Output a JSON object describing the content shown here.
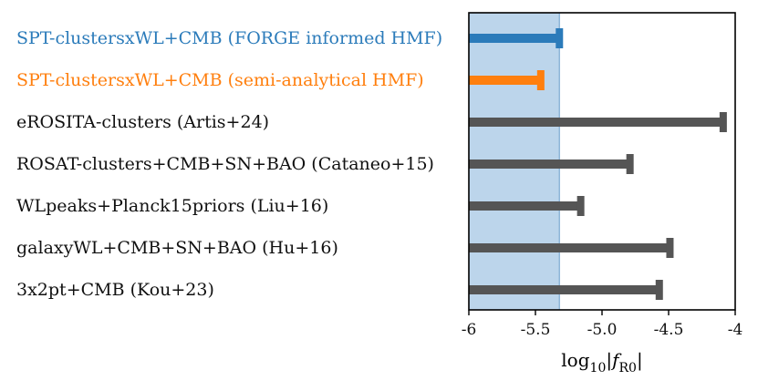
{
  "chart_data": {
    "type": "bar",
    "subtype": "horizontal upper-limit bars",
    "xlabel_parts": {
      "prefix": "log",
      "subscript": "10",
      "open": "|",
      "var": "f",
      "var_sub": "R0",
      "close": "|"
    },
    "xlim": [
      -6,
      -4
    ],
    "xticks": [
      -6,
      -5.5,
      -5.0,
      -4.5,
      -4
    ],
    "xtick_labels": [
      "-6",
      "-5.5",
      "-5.0",
      "-4.5",
      "-4"
    ],
    "shaded_region": {
      "from": -6,
      "to": -5.32,
      "color": "#bcd5eb",
      "edge_color": "#8fb6d9"
    },
    "grid": false,
    "series": [
      {
        "label": "SPT-clustersxWL+CMB (FORGE informed HMF)",
        "upper_limit": -5.32,
        "color": "#2b7bba"
      },
      {
        "label": "SPT-clustersxWL+CMB (semi-analytical HMF)",
        "upper_limit": -5.46,
        "color": "#ff7f0e"
      },
      {
        "label": "eROSITA-clusters (Artis+24)",
        "upper_limit": -4.09,
        "color": "#555555"
      },
      {
        "label": "ROSAT-clusters+CMB+SN+BAO (Cataneo+15)",
        "upper_limit": -4.79,
        "color": "#555555"
      },
      {
        "label": "WLpeaks+Planck15priors (Liu+16)",
        "upper_limit": -5.16,
        "color": "#555555"
      },
      {
        "label": "galaxyWL+CMB+SN+BAO (Hu+16)",
        "upper_limit": -4.49,
        "color": "#555555"
      },
      {
        "label": "3x2pt+CMB (Kou+23)",
        "upper_limit": -4.57,
        "color": "#555555"
      }
    ]
  }
}
